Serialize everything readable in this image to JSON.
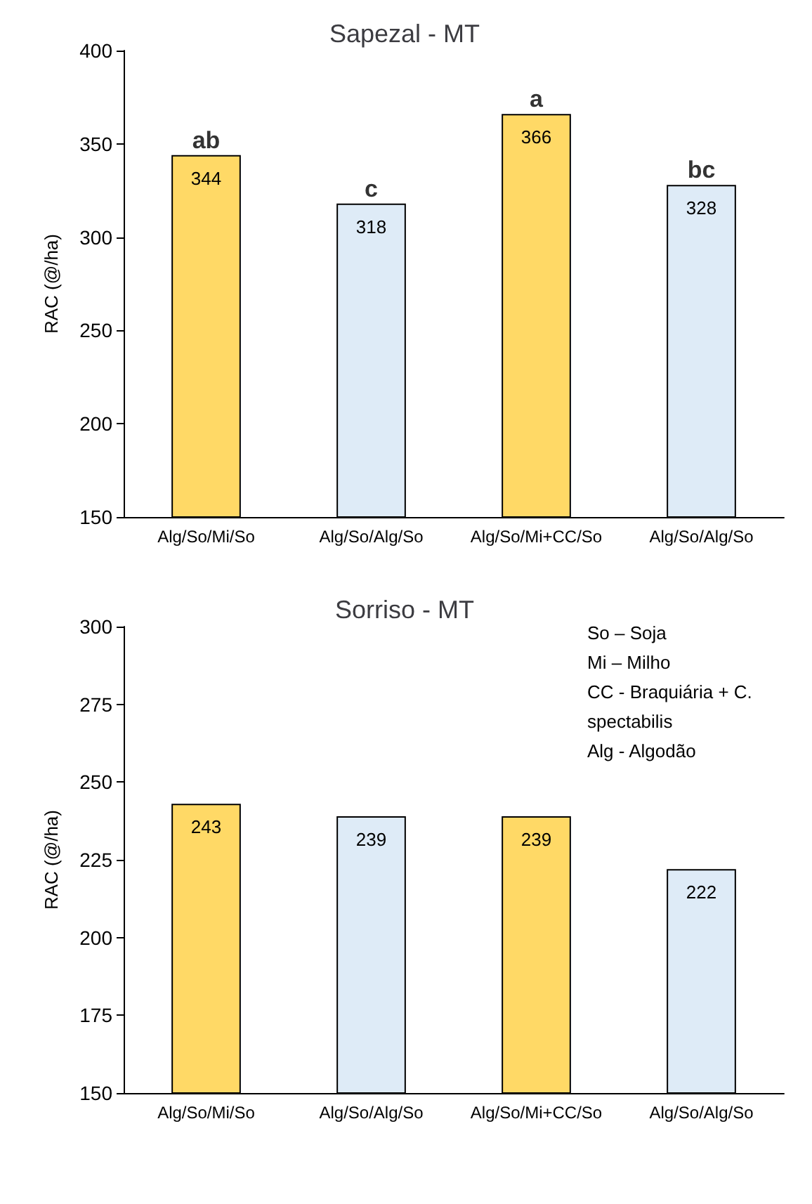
{
  "chart_data": [
    {
      "type": "bar",
      "title": "Sapezal - MT",
      "ylabel": "RAC (@/ha)",
      "categories": [
        "Alg/So/Mi/So",
        "Alg/So/Alg/So",
        "Alg/So/Mi+CC/So",
        "Alg/So/Alg/So"
      ],
      "values": [
        344,
        318,
        366,
        328
      ],
      "colors": [
        "#ffd966",
        "#deebf7",
        "#ffd966",
        "#deebf7"
      ],
      "ylim": [
        150,
        400
      ],
      "yticks": [
        150,
        200,
        250,
        300,
        350,
        400
      ],
      "data_labels": true,
      "annotations": [
        "ab",
        "c",
        "a",
        "bc"
      ]
    },
    {
      "type": "bar",
      "title": "Sorriso - MT",
      "ylabel": "RAC (@/ha)",
      "categories": [
        "Alg/So/Mi/So",
        "Alg/So/Alg/So",
        "Alg/So/Mi+CC/So",
        "Alg/So/Alg/So"
      ],
      "values": [
        243,
        239,
        239,
        222
      ],
      "colors": [
        "#ffd966",
        "#deebf7",
        "#ffd966",
        "#deebf7"
      ],
      "ylim": [
        150,
        300
      ],
      "yticks": [
        150,
        175,
        200,
        225,
        250,
        275,
        300
      ],
      "data_labels": true,
      "annotations": [
        "So – Soja",
        "Mi – Milho",
        "CC - Braquiária + C. spectabilis",
        "Alg - Algodão"
      ]
    }
  ]
}
